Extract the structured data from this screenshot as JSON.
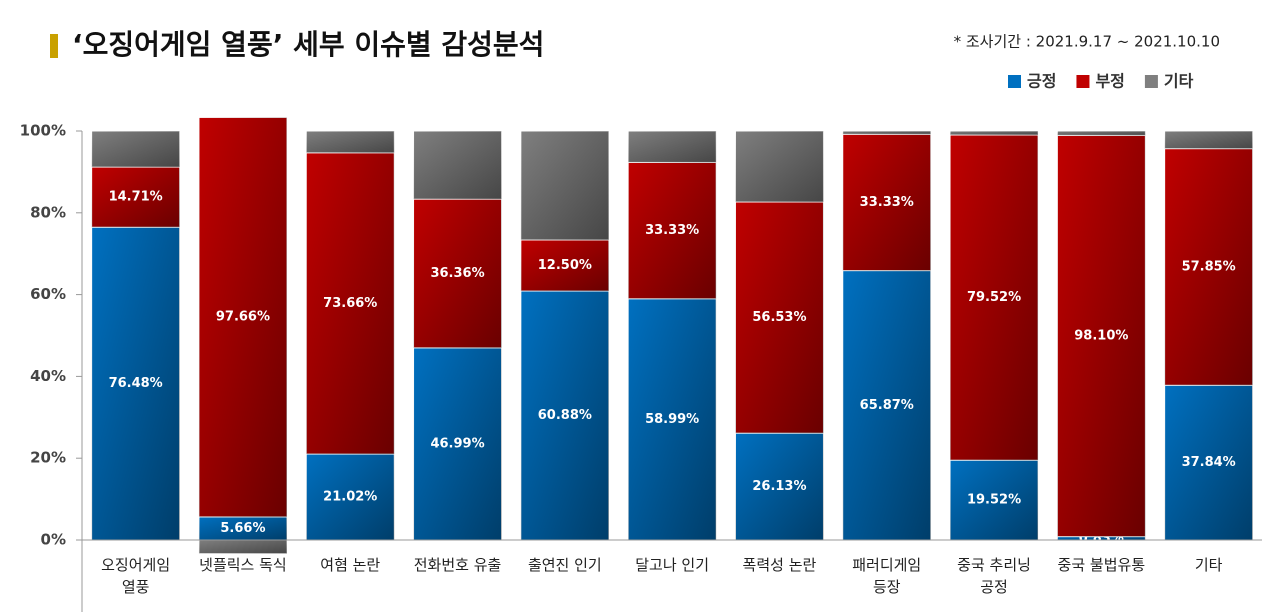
{
  "chart_data": {
    "type": "stacked_bar",
    "title": "‘오징어게임 열풍’ 세부 이슈별 감성분석",
    "subtitle": "* 조사기간 : 2021.9.17 ~ 2021.10.10",
    "categories": [
      "오징어게임\n열풍",
      "넷플릭스 독식",
      "여혐 논란",
      "전화번호 유출",
      "출연진 인기",
      "달고나 인기",
      "폭력성 논란",
      "패러디게임\n등장",
      "중국 추리닝\n공정",
      "중국 불법유통",
      "기타"
    ],
    "series": [
      {
        "name": "긍정",
        "color": "#0070c0",
        "values": [
          76.48,
          5.66,
          21.02,
          46.99,
          60.88,
          58.99,
          26.13,
          65.87,
          19.52,
          0.83,
          37.84
        ],
        "value_labels": [
          "76.48%",
          "5.66%",
          "21.02%",
          "46.99%",
          "60.88%",
          "58.99%",
          "26.13%",
          "65.87%",
          "19.52%",
          "0.83%",
          "37.84%"
        ]
      },
      {
        "name": "부정",
        "color": "#c00000",
        "values": [
          14.71,
          97.66,
          73.66,
          36.36,
          12.5,
          33.33,
          56.53,
          33.33,
          79.52,
          98.1,
          57.85
        ],
        "value_labels": [
          "14.71%",
          "97.66%",
          "73.66%",
          "36.36%",
          "12.50%",
          "33.33%",
          "56.53%",
          "33.33%",
          "79.52%",
          "98.10%",
          "57.85%"
        ]
      },
      {
        "name": "기타",
        "color": "#7f7f7f",
        "values": [
          8.81,
          -3.32,
          5.32,
          16.65,
          26.62,
          7.68,
          17.34,
          0.8,
          0.96,
          1.07,
          4.31
        ]
      }
    ],
    "ylim": [
      0,
      100
    ],
    "yticks": [
      {
        "value": 0,
        "label": "0%"
      },
      {
        "value": 20,
        "label": "20%"
      },
      {
        "value": 40,
        "label": "40%"
      },
      {
        "value": 60,
        "label": "60%"
      },
      {
        "value": 80,
        "label": "80%"
      },
      {
        "value": 100,
        "label": "100%"
      }
    ],
    "legend": "top-right"
  }
}
